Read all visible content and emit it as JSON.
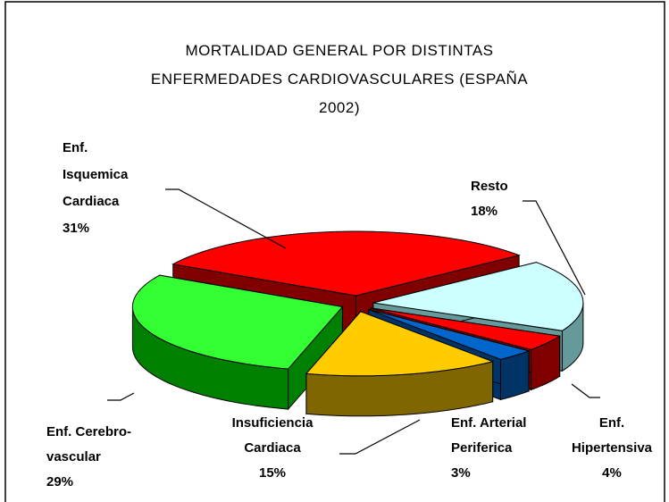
{
  "chart_data": {
    "type": "pie",
    "title": [
      "MORTALIDAD GENERAL POR DISTINTAS",
      "ENFERMEDADES CARDIOVASCULARES (ESPAÑA",
      "2002)"
    ],
    "categories": [
      [
        "Enf.",
        "Isquemica",
        "Cardiaca"
      ],
      [
        "Enf. Cerebro-",
        "vascular"
      ],
      [
        "Insuficiencia",
        "Cardiaca"
      ],
      [
        "Enf. Arterial",
        "Periferica"
      ],
      [
        "Enf.",
        "Hipertensiva"
      ],
      [
        "Resto"
      ]
    ],
    "values": [
      31,
      29,
      15,
      3,
      4,
      18
    ],
    "value_labels": [
      "31%",
      "29%",
      "15%",
      "3%",
      "4%",
      "18%"
    ],
    "colors": [
      "#ff0000",
      "#33ff33",
      "#ffcc00",
      "#0066cc",
      "#ff0000",
      "#ccffff"
    ],
    "side_colors": [
      "#800000",
      "#008000",
      "#806600",
      "#003366",
      "#800000",
      "#669999"
    ]
  }
}
